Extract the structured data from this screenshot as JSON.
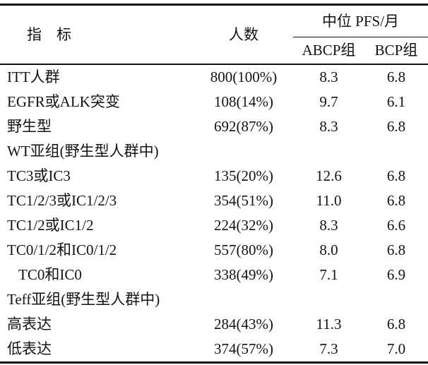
{
  "meta": {
    "kind": "journal-table",
    "text_color": "#131313",
    "rule_color": "#111111",
    "background": "#ffffff"
  },
  "table": {
    "headers": {
      "indicator": "指　标",
      "count": "人数",
      "pfs": "中位 PFS/月",
      "abcp": "ABCP组",
      "bcp": "BCP组"
    },
    "rows": [
      {
        "indicator": "ITT人群",
        "count": "800(100%)",
        "abcp": "8.3",
        "bcp": "6.8"
      },
      {
        "indicator": "EGFR或ALK突变",
        "count": "108(14%)",
        "abcp": "9.7",
        "bcp": "6.1"
      },
      {
        "indicator": "野生型",
        "count": "692(87%)",
        "abcp": "8.3",
        "bcp": "6.8"
      },
      {
        "indicator": "WT亚组(野生型人群中)",
        "count": "",
        "abcp": "",
        "bcp": ""
      },
      {
        "indicator": "TC3或IC3",
        "count": "135(20%)",
        "abcp": "12.6",
        "bcp": "6.8"
      },
      {
        "indicator": "TC1/2/3或IC1/2/3",
        "count": "354(51%)",
        "abcp": "11.0",
        "bcp": "6.8"
      },
      {
        "indicator": "TC1/2或IC1/2",
        "count": "224(32%)",
        "abcp": "8.3",
        "bcp": "6.6"
      },
      {
        "indicator": "TC0/1/2和IC0/1/2",
        "count": "557(80%)",
        "abcp": "8.0",
        "bcp": "6.8"
      },
      {
        "indicator": "TC0和IC0",
        "count": "338(49%)",
        "abcp": "7.1",
        "bcp": "6.9"
      },
      {
        "indicator": "Teff亚组(野生型人群中)",
        "count": "",
        "abcp": "",
        "bcp": ""
      },
      {
        "indicator": "高表达",
        "count": "284(43%)",
        "abcp": "11.3",
        "bcp": "6.8"
      },
      {
        "indicator": "低表达",
        "count": "374(57%)",
        "abcp": "7.3",
        "bcp": "7.0"
      }
    ]
  }
}
